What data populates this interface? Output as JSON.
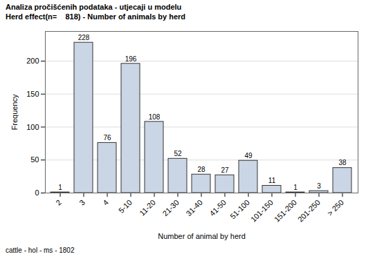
{
  "chart_data": {
    "type": "bar",
    "title": "Analiza pročišćenih podataka - utjecaji u modelu",
    "subtitle": "Herd effect(n=    818) - Number of animals by herd",
    "caption": "cattle - hol - ms - 1802",
    "x_label": "Number of animal by herd",
    "y_label": "Frequency",
    "categories": [
      "2",
      "3",
      "4",
      "5-10",
      "11-20",
      "21-30",
      "31-40",
      "41-50",
      "51-100",
      "101-150",
      "151-200",
      "201-250",
      "> 250"
    ],
    "values": [
      1,
      228,
      76,
      196,
      108,
      52,
      28,
      27,
      49,
      11,
      1,
      3,
      38
    ],
    "color": "#cad5e5",
    "ylim": [
      0,
      245
    ],
    "yticks": [
      0,
      50,
      100,
      150,
      200
    ],
    "grid": true,
    "data_labels": true
  }
}
